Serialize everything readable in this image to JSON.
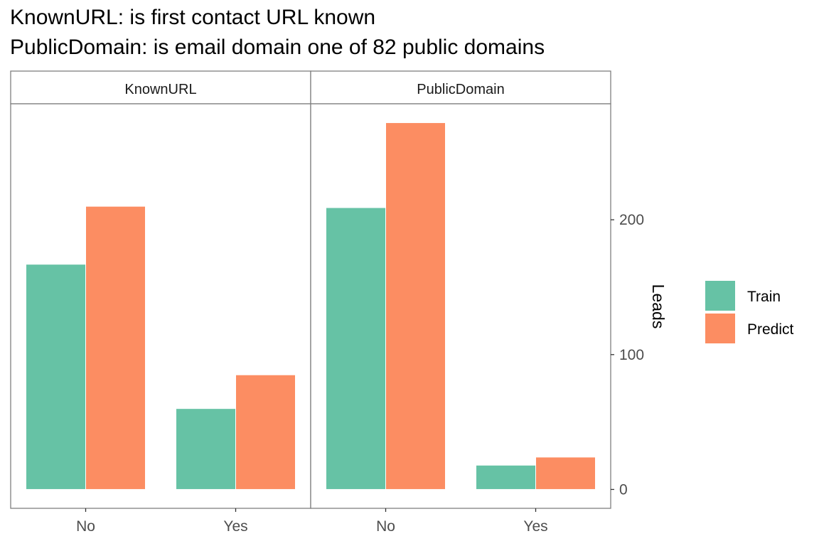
{
  "title_lines": [
    "KnownURL: is first contact URL known",
    "PublicDomain: is email domain one of 82 public domains"
  ],
  "colors": {
    "Train": "#66c2a5",
    "Predict": "#fc8d62"
  },
  "chart_data": {
    "type": "bar",
    "facets": [
      {
        "name": "KnownURL",
        "categories": [
          "No",
          "Yes"
        ],
        "series": [
          {
            "name": "Train",
            "values": [
              167,
              60
            ]
          },
          {
            "name": "Predict",
            "values": [
              210,
              85
            ]
          }
        ]
      },
      {
        "name": "PublicDomain",
        "categories": [
          "No",
          "Yes"
        ],
        "series": [
          {
            "name": "Train",
            "values": [
              209,
              18
            ]
          },
          {
            "name": "Predict",
            "values": [
              272,
              24
            ]
          }
        ]
      }
    ],
    "ylabel": "Leads",
    "yticks": [
      0,
      100,
      200
    ],
    "ylim": [
      -14,
      286
    ],
    "y_axis_position": "right",
    "legend_position": "right",
    "grid": false
  }
}
